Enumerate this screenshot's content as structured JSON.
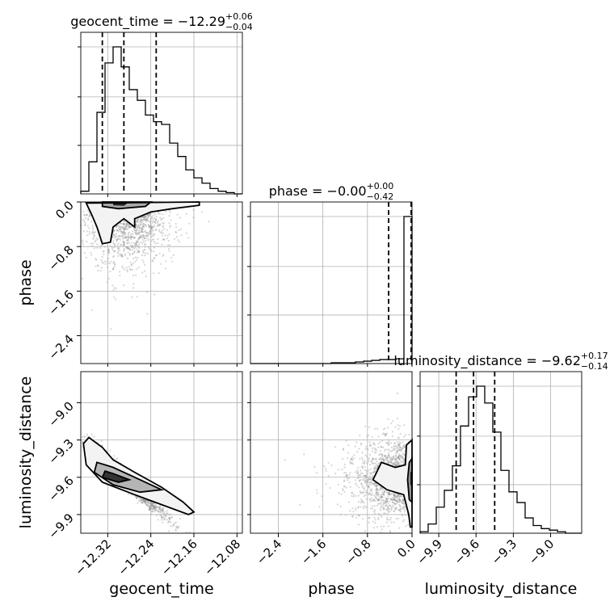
{
  "chart_data": {
    "type": "corner",
    "parameters": [
      "geocent_time",
      "phase",
      "luminosity_distance"
    ],
    "titles": {
      "geocent_time": {
        "prefix": "geocent_time = ",
        "value": "−12.29",
        "upper": "+0.06",
        "lower": "−0.04"
      },
      "phase": {
        "prefix": "phase = ",
        "value": "−0.00",
        "upper": "+0.00",
        "lower": "−0.42"
      },
      "luminosity_distance": {
        "prefix": "luminosity_distance = ",
        "value": "−9.62",
        "upper": "+0.17",
        "lower": "−0.14"
      }
    },
    "axis_labels": {
      "x": [
        "geocent_time",
        "phase",
        "luminosity_distance"
      ],
      "y": [
        "phase",
        "luminosity_distance"
      ]
    },
    "ranges": {
      "geocent_time": [
        -12.37,
        -12.07
      ],
      "phase": [
        -2.9,
        0.0
      ],
      "luminosity_distance": [
        -10.05,
        -8.75
      ]
    },
    "ticks": {
      "geocent_time": {
        "values": [
          -12.32,
          -12.24,
          -12.16,
          -12.08
        ],
        "labels": [
          "−12.32",
          "−12.24",
          "−12.16",
          "−12.08"
        ]
      },
      "phase": {
        "values": [
          -2.4,
          -1.6,
          -0.8,
          0.0
        ],
        "labels": [
          "−2.4",
          "−1.6",
          "−0.8",
          "0.0"
        ]
      },
      "luminosity_distance": {
        "values": [
          -9.9,
          -9.6,
          -9.3,
          -9.0
        ],
        "labels": [
          "−9.9",
          "−9.6",
          "−9.3",
          "−9.0"
        ]
      }
    },
    "quantiles": {
      "geocent_time": [
        -12.33,
        -12.29,
        -12.23
      ],
      "phase": [
        -0.42,
        -0.0,
        0.0
      ],
      "luminosity_distance": [
        -9.76,
        -9.62,
        -9.45
      ]
    },
    "histograms": {
      "geocent_time": {
        "bin_edges": [
          -12.37,
          -12.355,
          -12.34,
          -12.325,
          -12.31,
          -12.295,
          -12.28,
          -12.265,
          -12.25,
          -12.235,
          -12.22,
          -12.205,
          -12.19,
          -12.175,
          -12.16,
          -12.145,
          -12.13,
          -12.115,
          -12.1,
          -12.085,
          -12.07
        ],
        "counts": [
          4,
          48,
          122,
          196,
          220,
          190,
          156,
          140,
          118,
          108,
          104,
          76,
          56,
          36,
          24,
          16,
          8,
          4,
          2,
          0
        ]
      },
      "phase": {
        "bin_edges": [
          -2.9,
          -2.755,
          -2.61,
          -2.465,
          -2.32,
          -2.175,
          -2.03,
          -1.885,
          -1.74,
          -1.595,
          -1.45,
          -1.305,
          -1.16,
          -1.015,
          -0.87,
          -0.725,
          -0.58,
          -0.435,
          -0.29,
          -0.145,
          0.0
        ],
        "counts": [
          0,
          0,
          0,
          0,
          0,
          0,
          0,
          0,
          0,
          0,
          1,
          1,
          1,
          2,
          3,
          4,
          5,
          5,
          6,
          185
        ]
      },
      "luminosity_distance": {
        "bin_edges": [
          -10.05,
          -9.985,
          -9.92,
          -9.855,
          -9.79,
          -9.725,
          -9.66,
          -9.595,
          -9.53,
          -9.465,
          -9.4,
          -9.335,
          -9.27,
          -9.205,
          -9.14,
          -9.075,
          -9.01,
          -8.945,
          -8.88,
          -8.815,
          -8.75
        ],
        "counts": [
          2,
          12,
          34,
          56,
          88,
          140,
          178,
          192,
          170,
          132,
          82,
          54,
          40,
          20,
          10,
          6,
          4,
          2,
          0,
          0
        ]
      }
    },
    "scatter_samples": 1400,
    "grid": true
  }
}
